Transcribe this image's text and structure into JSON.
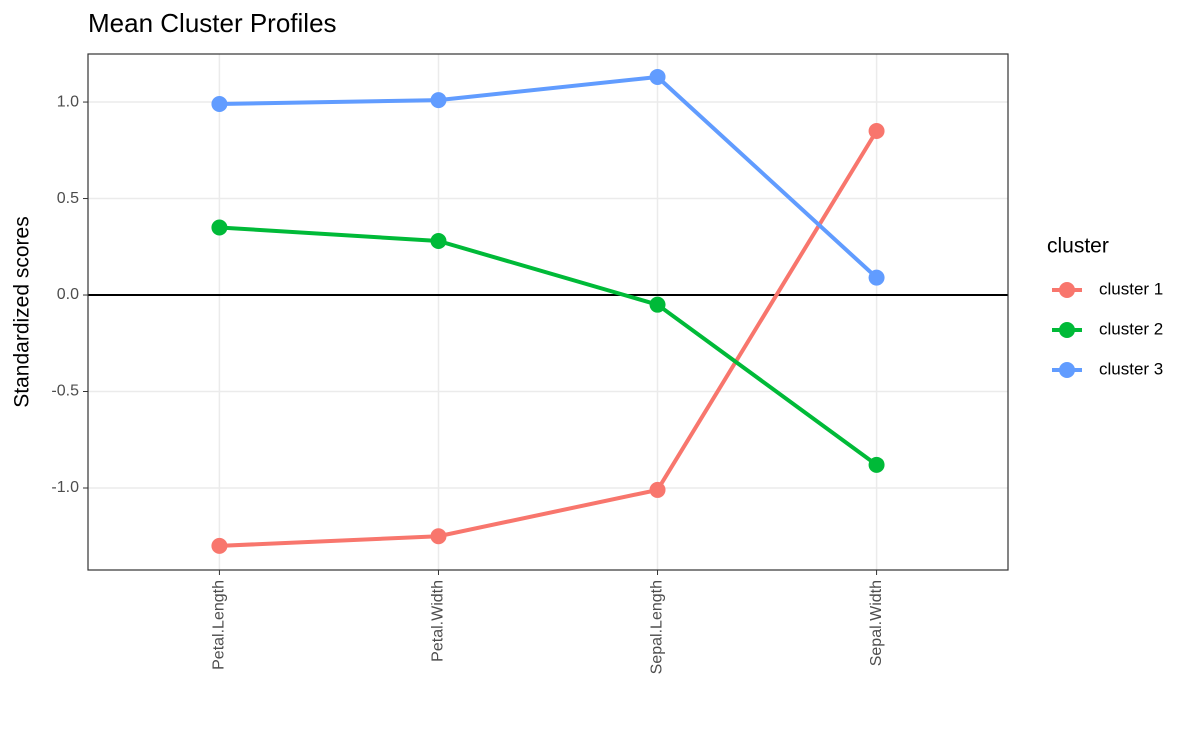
{
  "chart_data": {
    "type": "line",
    "title": "Mean Cluster Profiles",
    "y_label": "Standardized scores",
    "categories": [
      "Petal.Length",
      "Petal.Width",
      "Sepal.Length",
      "Sepal.Width"
    ],
    "series": [
      {
        "name": "cluster 1",
        "color": "#F8766D",
        "values": [
          -1.3,
          -1.25,
          -1.01,
          0.85
        ]
      },
      {
        "name": "cluster 2",
        "color": "#00BA38",
        "values": [
          0.35,
          0.28,
          -0.05,
          -0.88
        ]
      },
      {
        "name": "cluster 3",
        "color": "#619CFF",
        "values": [
          0.99,
          1.01,
          1.13,
          0.09
        ]
      }
    ],
    "legend_title": "cluster",
    "legend_position": "right",
    "ylim": [
      -1.425,
      1.249
    ],
    "yticks": [
      {
        "value": -1,
        "label": "-1.0"
      },
      {
        "value": -0.5,
        "label": "-0.5"
      },
      {
        "value": 0,
        "label": "0.0"
      },
      {
        "value": 0.5,
        "label": "0.5"
      },
      {
        "value": 1,
        "label": "1.0"
      }
    ],
    "reference_line": 0,
    "grid": true
  }
}
